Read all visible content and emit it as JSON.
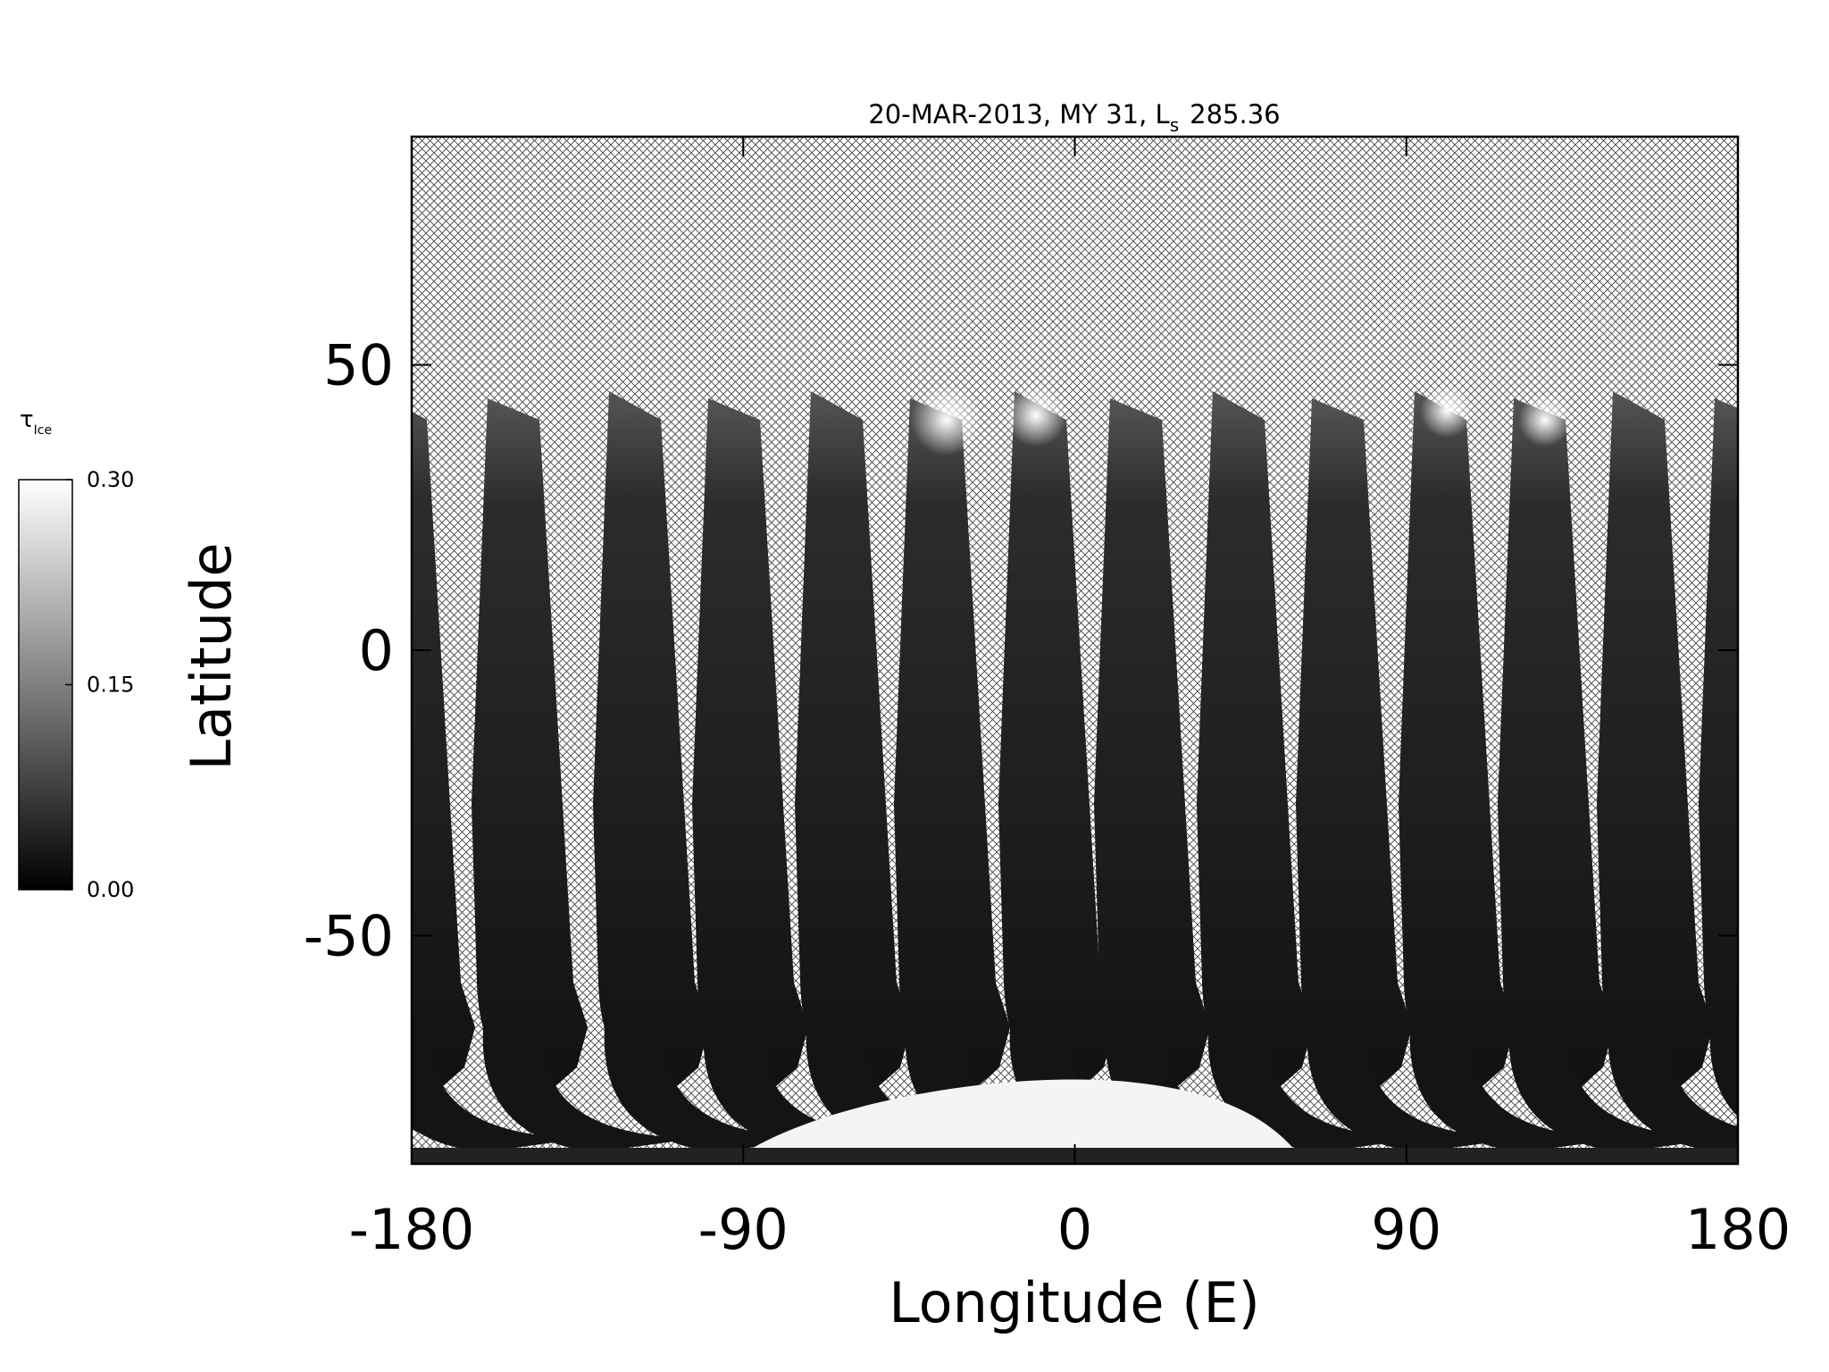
{
  "chart_data": {
    "type": "map",
    "title": "20-MAR-2013, MY 31,  L",
    "title_subscript": "s",
    "title_value": "285.36",
    "x_label": "Longitude (E)",
    "y_label": "Latitude",
    "xlim": [
      -180,
      180
    ],
    "xticks": [
      -180,
      -90,
      0,
      90,
      180
    ],
    "ylim": [
      -90,
      90
    ],
    "yticks": [
      -50,
      0,
      50
    ],
    "colorbar": {
      "label": "τ",
      "label_subscript": "Ice",
      "lim": [
        0,
        0.3
      ],
      "ticks": [
        {
          "value": 0,
          "label": "0.00"
        },
        {
          "value": 0.15,
          "label": "0.15"
        },
        {
          "value": 0.3,
          "label": "0.30"
        }
      ],
      "colors": [
        "#000000",
        "#ffffff"
      ]
    }
  }
}
